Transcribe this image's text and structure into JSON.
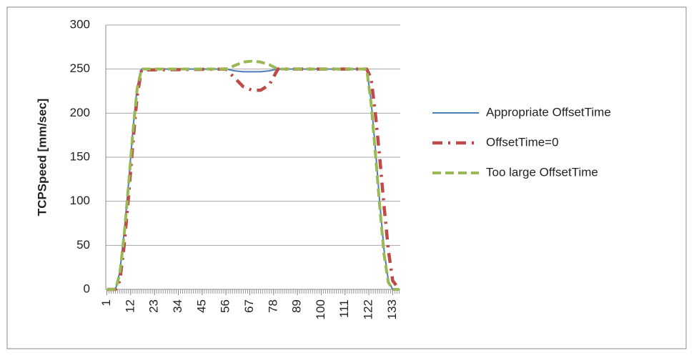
{
  "chart_data": {
    "type": "line",
    "y_label": "TCPSpeed [mm/sec]",
    "x": [
      1,
      5,
      7,
      9,
      11,
      13,
      15,
      17,
      56,
      60,
      64,
      68,
      72,
      76,
      80,
      121,
      123,
      125,
      127,
      129,
      131,
      133,
      136
    ],
    "xlim": [
      0.5,
      136.5
    ],
    "xticks": [
      1,
      12,
      23,
      34,
      45,
      56,
      67,
      78,
      89,
      100,
      111,
      122,
      133
    ],
    "ylim": [
      0,
      300
    ],
    "yticks": [
      0,
      50,
      100,
      150,
      200,
      250,
      300
    ],
    "grid": true,
    "legend": "right",
    "series": [
      {
        "name": "Appropriate OffsetTime",
        "color": "#4a7ebb",
        "dash": "solid",
        "values": [
          0,
          0,
          20,
          65,
          120,
          180,
          230,
          250,
          250,
          248,
          247,
          247,
          247,
          248,
          250,
          250,
          215,
          160,
          100,
          45,
          10,
          0,
          0
        ]
      },
      {
        "name": "OffsetTime=0",
        "color": "#be4b48",
        "dash": "dash-dot",
        "values": [
          0,
          0,
          10,
          50,
          105,
          165,
          220,
          249,
          250,
          240,
          230,
          226,
          226,
          232,
          250,
          250,
          240,
          200,
          150,
          95,
          45,
          10,
          0
        ]
      },
      {
        "name": "Too large OffsetTime",
        "color": "#98b954",
        "dash": "dashed",
        "values": [
          0,
          0,
          18,
          62,
          118,
          178,
          228,
          250,
          250,
          254,
          258,
          259,
          258,
          255,
          250,
          250,
          212,
          155,
          95,
          40,
          8,
          0,
          0
        ]
      }
    ]
  }
}
